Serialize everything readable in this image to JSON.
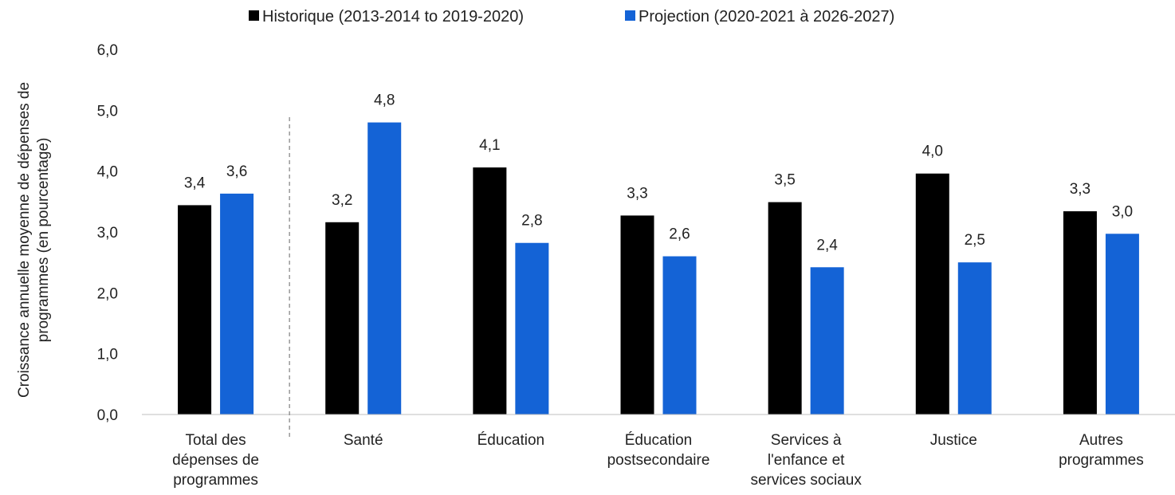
{
  "chart_data": {
    "type": "bar",
    "categories": [
      [
        "Total des",
        "dépenses de",
        "programmes"
      ],
      [
        "Santé"
      ],
      [
        "Éducation"
      ],
      [
        "Éducation",
        "postsecondaire"
      ],
      [
        "Services à",
        "l'enfance et",
        "services sociaux"
      ],
      [
        "Justice"
      ],
      [
        "Autres",
        "programmes"
      ]
    ],
    "series": [
      {
        "name": "Historique (2013-2014 to 2019-2020)",
        "color": "#000000",
        "values": [
          3.44,
          3.16,
          4.06,
          3.27,
          3.49,
          3.96,
          3.34
        ],
        "labels": [
          "3,4",
          "3,2",
          "4,1",
          "3,3",
          "3,5",
          "4,0",
          "3,3"
        ]
      },
      {
        "name": "Projection (2020-2021 à 2026-2027)",
        "color": "#1463d6",
        "values": [
          3.63,
          4.8,
          2.82,
          2.6,
          2.42,
          2.5,
          2.97
        ],
        "labels": [
          "3,6",
          "4,8",
          "2,8",
          "2,6",
          "2,4",
          "2,5",
          "3,0"
        ]
      }
    ],
    "ylabel": [
      "Croissance annuelle moyenne de dépenses de",
      "programmes  (en pourcentage)"
    ],
    "ylim": [
      0,
      6
    ],
    "yticks": [
      0,
      1,
      2,
      3,
      4,
      5,
      6
    ],
    "ytick_labels": [
      "0,0",
      "1,0",
      "2,0",
      "3,0",
      "4,0",
      "5,0",
      "6,0"
    ],
    "legend_position": "top-center",
    "grid": false,
    "separator_after_category": 0
  }
}
